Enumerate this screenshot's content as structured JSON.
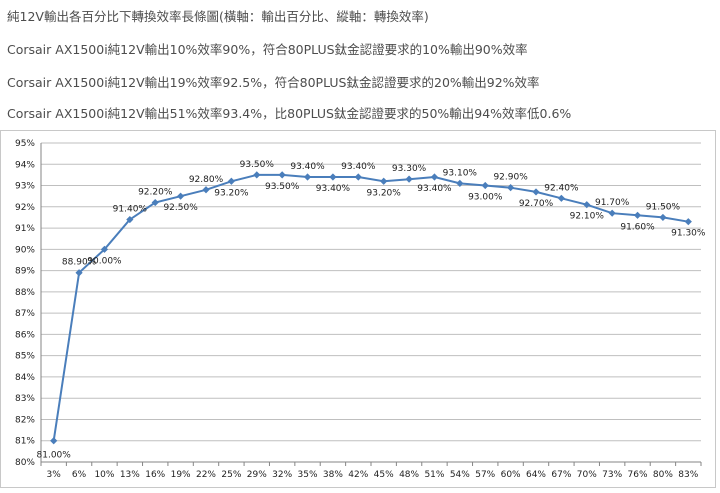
{
  "text_lines": [
    "純12V輸出各百分比下轉換效率長條圖(橫軸：輸出百分比、縱軸：轉換效率)",
    "Corsair AX1500i純12V輸出10%效率90%，符合80PLUS鈦金認證要求的10%輸出90%效率",
    "Corsair AX1500i純12V輸出19%效率92.5%，符合80PLUS鈦金認證要求的20%輸出92%效率",
    "Corsair AX1500i純12V輸出51%效率93.4%，比80PLUS鈦金認證要求的50%輸出94%效率低0.6%"
  ],
  "colors": {
    "series": "#4a7ebb",
    "grid": "#bfbfbf",
    "axis": "#868686"
  },
  "chart_data": {
    "type": "line",
    "x": [
      "3%",
      "6%",
      "10%",
      "13%",
      "16%",
      "19%",
      "22%",
      "25%",
      "29%",
      "32%",
      "35%",
      "38%",
      "42%",
      "45%",
      "48%",
      "51%",
      "54%",
      "57%",
      "60%",
      "64%",
      "67%",
      "70%",
      "73%",
      "76%",
      "80%",
      "83%"
    ],
    "series": [
      {
        "values": [
          81.0,
          88.9,
          90.0,
          91.4,
          92.2,
          92.5,
          92.8,
          93.2,
          93.5,
          93.5,
          93.4,
          93.4,
          93.4,
          93.2,
          93.3,
          93.4,
          93.1,
          93.0,
          92.9,
          92.7,
          92.4,
          92.1,
          91.7,
          91.6,
          91.5,
          91.3
        ]
      }
    ],
    "data_labels": [
      "81.00%",
      "88.90%",
      "90.00%",
      "91.40%",
      "92.20%",
      "92.50%",
      "92.80%",
      "93.20%",
      "93.50%",
      "93.50%",
      "93.40%",
      "93.40%",
      "93.40%",
      "93.20%",
      "93.30%",
      "93.40%",
      "93.10%",
      "93.00%",
      "92.90%",
      "92.70%",
      "92.40%",
      "92.10%",
      "91.70%",
      "91.60%",
      "91.50%",
      "91.30%"
    ],
    "y_ticks": [
      "80%",
      "81%",
      "82%",
      "83%",
      "84%",
      "85%",
      "86%",
      "87%",
      "88%",
      "89%",
      "90%",
      "91%",
      "92%",
      "93%",
      "94%",
      "95%"
    ],
    "ylim": [
      80,
      95
    ],
    "grid": true,
    "legend": "none"
  }
}
